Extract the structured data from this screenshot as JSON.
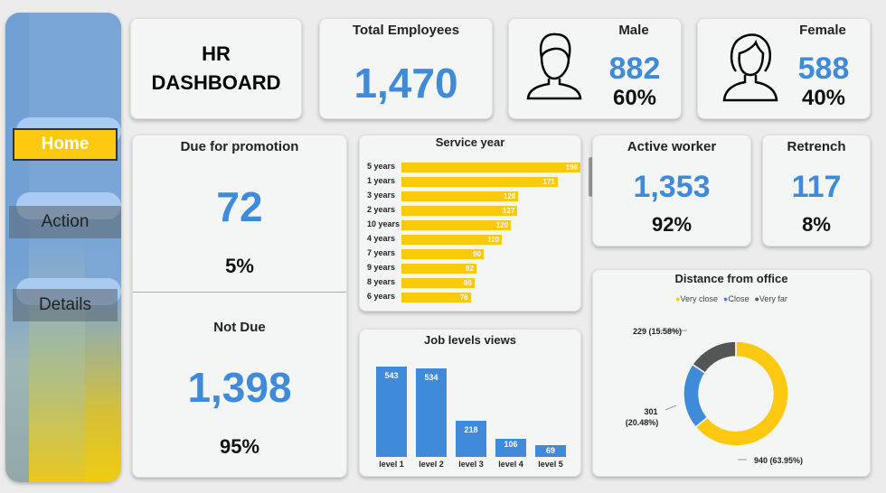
{
  "nav": {
    "home": "Home",
    "action": "Action",
    "details": "Details"
  },
  "header": {
    "title_line1": "HR",
    "title_line2": "DASHBOARD"
  },
  "total_employees": {
    "label": "Total Employees",
    "value": "1,470"
  },
  "male": {
    "label": "Male",
    "value": "882",
    "pct": "60%"
  },
  "female": {
    "label": "Female",
    "value": "588",
    "pct": "40%"
  },
  "promotion": {
    "due_label": "Due for promotion",
    "due_value": "72",
    "due_pct": "5%",
    "not_due_label": "Not Due",
    "not_due_value": "1,398",
    "not_due_pct": "95%"
  },
  "active": {
    "label": "Active worker",
    "value": "1,353",
    "pct": "92%"
  },
  "retrench": {
    "label": "Retrench",
    "value": "117",
    "pct": "8%"
  },
  "colors": {
    "accent_blue": "#3f8ad9",
    "accent_yellow": "#fcc910",
    "dark_gray": "#555555"
  },
  "chart_data": [
    {
      "type": "bar",
      "orientation": "horizontal",
      "title": "Service year",
      "categories": [
        "5 years",
        "1 years",
        "3 years",
        "2 years",
        "10 years",
        "4 years",
        "7 years",
        "9 years",
        "8 years",
        "6 years"
      ],
      "values": [
        196,
        171,
        128,
        127,
        120,
        110,
        90,
        82,
        80,
        76
      ]
    },
    {
      "type": "bar",
      "title": "Job levels views",
      "categories": [
        "level 1",
        "level 2",
        "level 3",
        "level 4",
        "level 5"
      ],
      "values": [
        543,
        534,
        218,
        106,
        69
      ]
    },
    {
      "type": "pie",
      "title": "Distance from office",
      "legend": [
        "Very close",
        "Close",
        "Very far"
      ],
      "legend_placement": "top",
      "slices": [
        {
          "name": "Very close",
          "value": 940,
          "label": "940 (63.95%)",
          "color": "#fcc910"
        },
        {
          "name": "Close",
          "value": 301,
          "label_line1": "301",
          "label_line2": "(20.48%)",
          "color": "#3f8ad9"
        },
        {
          "name": "Very far",
          "value": 229,
          "label": "229 (15.58%)",
          "color": "#555555"
        }
      ]
    }
  ]
}
